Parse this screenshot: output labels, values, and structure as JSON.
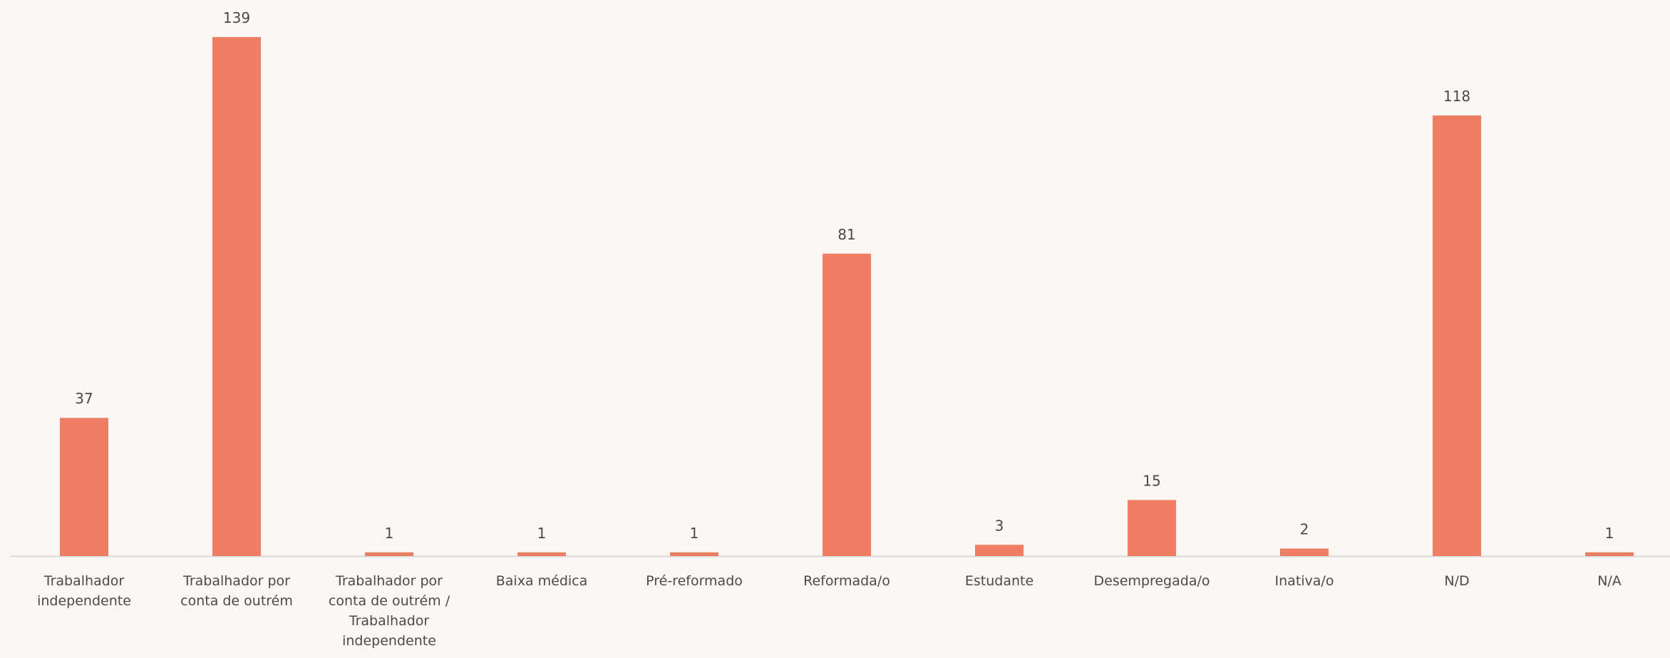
{
  "chart_data": {
    "type": "bar",
    "categories": [
      "Trabalhador independente",
      "Trabalhador por conta de outrém",
      "Trabalhador por conta de outrém / Trabalhador independente",
      "Baixa médica",
      "Pré-reformado",
      "Reformada/o",
      "Estudante",
      "Desempregada/o",
      "Inativa/o",
      "N/D",
      "N/A"
    ],
    "category_lines": [
      [
        "Trabalhador",
        "independente"
      ],
      [
        "Trabalhador por",
        "conta de outrém"
      ],
      [
        "Trabalhador por",
        "conta de outrém /",
        "Trabalhador",
        "independente"
      ],
      [
        "Baixa médica"
      ],
      [
        "Pré-reformado"
      ],
      [
        "Reformada/o"
      ],
      [
        "Estudante"
      ],
      [
        "Desempregada/o"
      ],
      [
        "Inativa/o"
      ],
      [
        "N/D"
      ],
      [
        "N/A"
      ]
    ],
    "values": [
      37,
      139,
      1,
      1,
      1,
      81,
      3,
      15,
      2,
      118,
      1
    ],
    "ylim": [
      0,
      139
    ],
    "grid": false,
    "legend": "none",
    "colors": {
      "bar": "#ef7d63",
      "background": "#fcf7f2",
      "axis": "#d9d9d9",
      "text": "#4a4a4a"
    }
  }
}
